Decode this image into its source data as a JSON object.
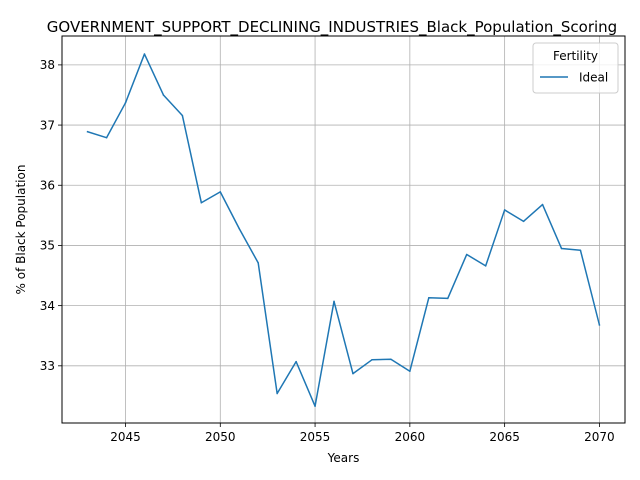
{
  "chart_data": {
    "type": "line",
    "title": "GOVERNMENT_SUPPORT_DECLINING_INDUSTRIES_Black_Population_Scoring",
    "xlabel": "Years",
    "ylabel": "% of Black Population",
    "xlim": [
      2041.65,
      2071.35
    ],
    "ylim": [
      32.05,
      38.48
    ],
    "xticks": [
      2045,
      2050,
      2055,
      2060,
      2065,
      2070
    ],
    "yticks": [
      33,
      34,
      35,
      36,
      37,
      38
    ],
    "grid": true,
    "legend": {
      "title": "Fertility",
      "placement": "top-right"
    },
    "series": [
      {
        "name": "Ideal",
        "color": "#1f77b4",
        "x": [
          2043,
          2044,
          2045,
          2046,
          2047,
          2048,
          2049,
          2050,
          2051,
          2052,
          2053,
          2054,
          2055,
          2056,
          2057,
          2058,
          2059,
          2060,
          2061,
          2062,
          2063,
          2064,
          2065,
          2066,
          2067,
          2068,
          2069,
          2070
        ],
        "y": [
          36.89,
          36.79,
          37.37,
          38.18,
          37.5,
          37.16,
          35.71,
          35.89,
          35.28,
          34.71,
          32.54,
          33.07,
          32.33,
          34.07,
          32.87,
          33.1,
          33.11,
          32.91,
          34.13,
          34.12,
          34.85,
          34.66,
          35.59,
          35.4,
          35.68,
          34.95,
          34.92,
          33.68
        ]
      }
    ]
  }
}
